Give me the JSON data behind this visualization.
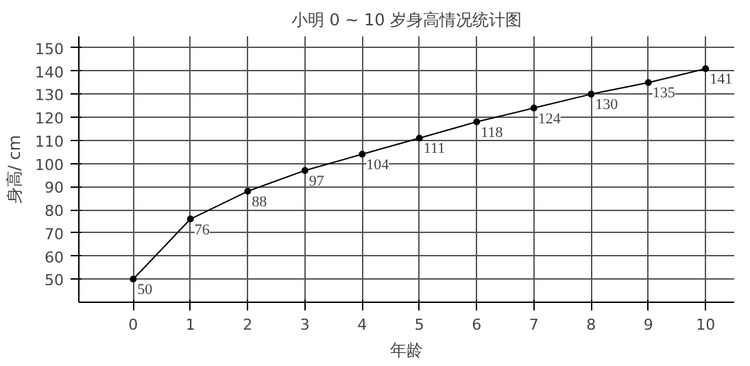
{
  "chart_data": {
    "type": "line",
    "title": "小明 0 ~ 10 岁身高情况统计图",
    "xlabel": "年龄",
    "ylabel": "身高/ cm",
    "x": [
      0,
      1,
      2,
      3,
      4,
      5,
      6,
      7,
      8,
      9,
      10
    ],
    "series": [
      {
        "color": "#000000",
        "values": [
          50,
          76,
          88,
          97,
          104,
          111,
          118,
          124,
          130,
          135,
          141
        ]
      }
    ],
    "xlim": [
      -0.95,
      10.5
    ],
    "ylim": [
      40,
      155
    ],
    "xticks": [
      0,
      1,
      2,
      3,
      4,
      5,
      6,
      7,
      8,
      9,
      10
    ],
    "yticks": [
      50,
      60,
      70,
      80,
      90,
      100,
      110,
      120,
      130,
      140,
      150
    ],
    "grid": true,
    "marker": "circle",
    "line_style": "solid",
    "data_labels": true
  }
}
